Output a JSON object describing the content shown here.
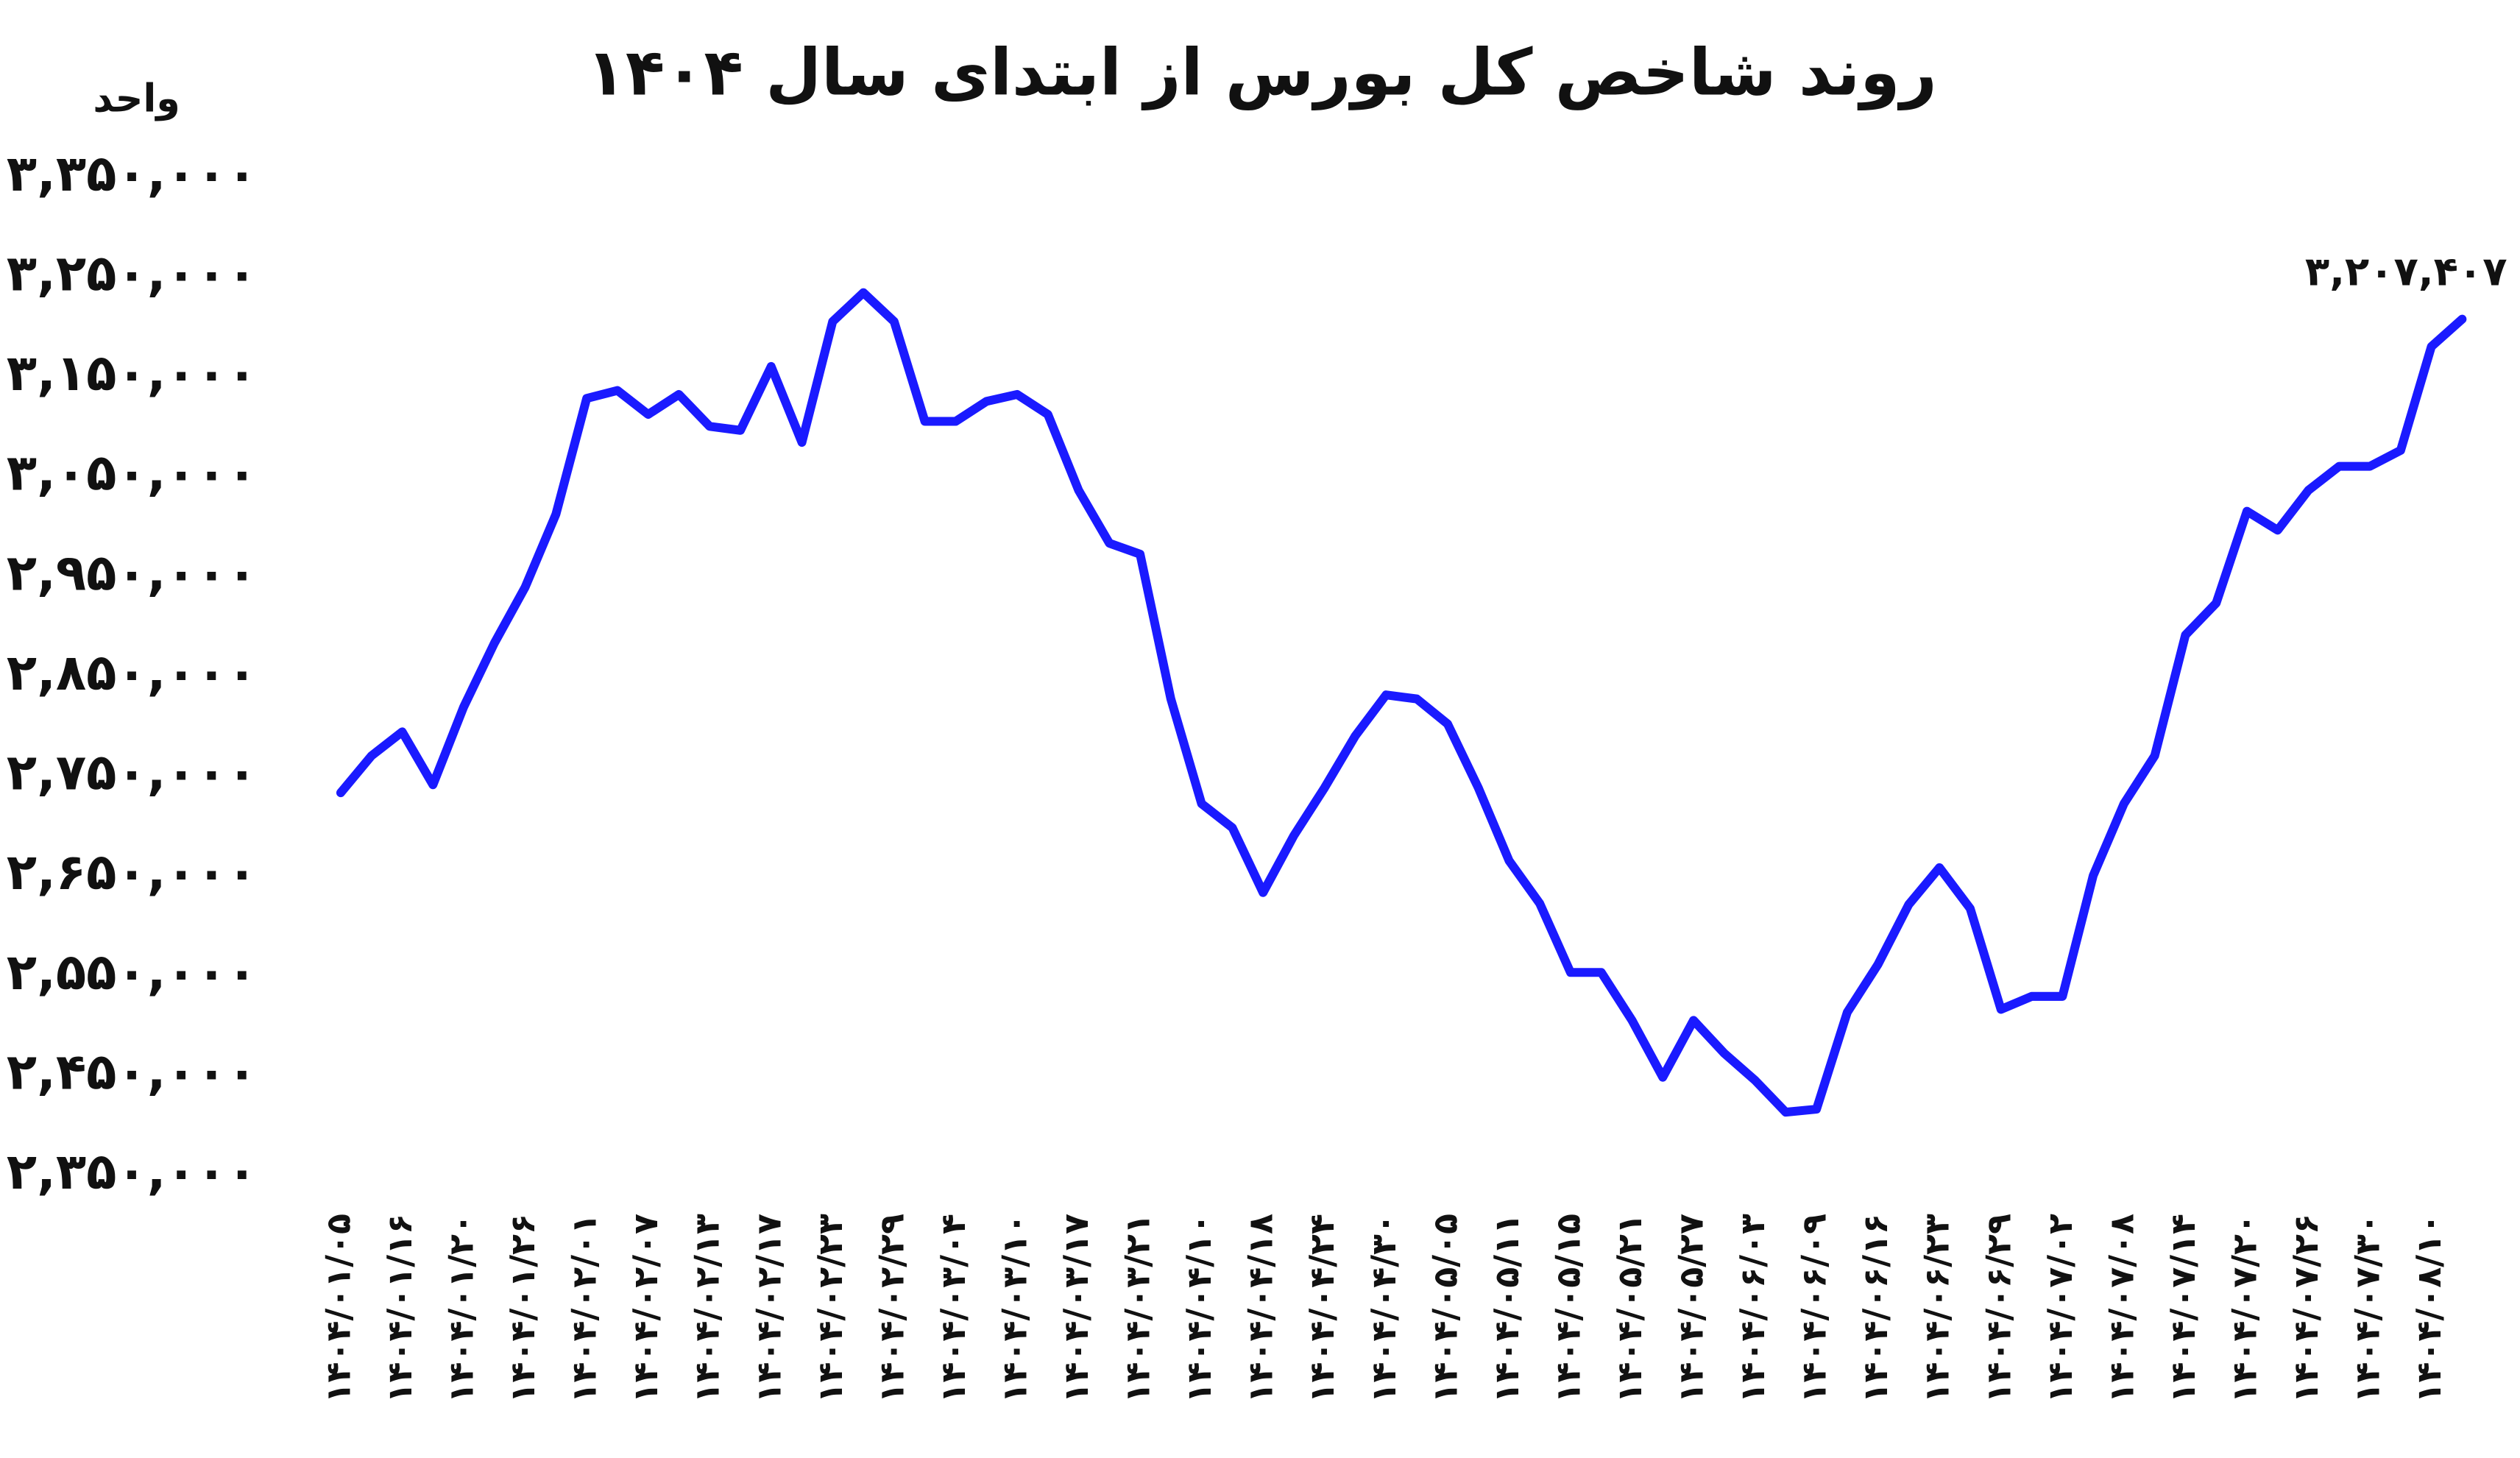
{
  "chart_data": {
    "type": "line",
    "title": "روند شاخص کل بورس از ابتدای سال ۱۴۰۴",
    "y_label": "واحد",
    "categories": [
      "۱۴۰۴/۰۱/۰۵",
      null,
      "۱۴۰۴/۰۱/۱۶",
      null,
      "۱۴۰۴/۰۱/۲۰",
      null,
      "۱۴۰۴/۰۱/۲۶",
      null,
      "۱۴۰۴/۰۲/۰۱",
      null,
      "۱۴۰۴/۰۲/۰۷",
      null,
      "۱۴۰۴/۰۲/۱۳",
      null,
      "۱۴۰۴/۰۲/۱۷",
      null,
      "۱۴۰۴/۰۲/۲۳",
      null,
      "۱۴۰۴/۰۲/۲۹",
      null,
      "۱۴۰۴/۰۳/۰۴",
      null,
      "۱۴۰۴/۰۳/۱۰",
      null,
      "۱۴۰۴/۰۳/۱۷",
      null,
      "۱۴۰۴/۰۳/۲۱",
      null,
      "۱۴۰۴/۰۴/۱۰",
      null,
      "۱۴۰۴/۰۴/۱۸",
      null,
      "۱۴۰۴/۰۴/۲۴",
      null,
      "۱۴۰۴/۰۴/۳۰",
      null,
      "۱۴۰۴/۰۵/۰۵",
      null,
      "۱۴۰۴/۰۵/۱۱",
      null,
      "۱۴۰۴/۰۵/۱۵",
      null,
      "۱۴۰۴/۰۵/۲۱",
      null,
      "۱۴۰۴/۰۵/۲۷",
      null,
      "۱۴۰۴/۰۶/۰۳",
      null,
      "۱۴۰۴/۰۶/۰۹",
      null,
      "۱۴۰۴/۰۶/۱۶",
      null,
      "۱۴۰۴/۰۶/۲۳",
      null,
      "۱۴۰۴/۰۶/۲۹",
      null,
      "۱۴۰۴/۰۷/۰۲",
      null,
      "۱۴۰۴/۰۷/۰۸",
      null,
      "۱۴۰۴/۰۷/۱۴",
      null,
      "۱۴۰۴/۰۷/۲۰",
      null,
      "۱۴۰۴/۰۷/۲۶",
      null,
      "۱۴۰۴/۰۷/۳۰",
      null,
      "۱۴۰۴/۰۸/۱۰",
      null
    ],
    "series": [
      {
        "color": "#1a1aff",
        "values": [
          2733000,
          2770000,
          2794000,
          2741000,
          2819000,
          2883000,
          2939000,
          3012000,
          3128000,
          3136000,
          3112000,
          3132000,
          3100000,
          3096000,
          3160000,
          3084000,
          3205000,
          3234000,
          3205000,
          3105000,
          3105000,
          3125000,
          3132000,
          3112000,
          3036000,
          2983000,
          2972000,
          2827000,
          2722000,
          2698000,
          2633000,
          2690000,
          2738000,
          2790000,
          2831000,
          2827000,
          2802000,
          2738000,
          2665000,
          2622000,
          2553000,
          2553000,
          2505000,
          2448000,
          2505000,
          2472000,
          2445000,
          2413000,
          2416000,
          2513000,
          2561000,
          2621000,
          2658000,
          2617000,
          2516000,
          2529000,
          2529000,
          2650000,
          2722000,
          2770000,
          2891000,
          2923000,
          3015000,
          2996000,
          3036000,
          3060000,
          3060000,
          3076000,
          3180000,
          3207407
        ],
        "value_labels": [
          null,
          null,
          null,
          null,
          null,
          null,
          null,
          null,
          null,
          null,
          null,
          null,
          null,
          null,
          null,
          null,
          null,
          null,
          null,
          null,
          null,
          null,
          null,
          null,
          null,
          null,
          null,
          null,
          null,
          null,
          null,
          null,
          null,
          null,
          null,
          null,
          null,
          null,
          null,
          null,
          null,
          null,
          null,
          null,
          null,
          null,
          null,
          null,
          null,
          null,
          null,
          null,
          null,
          null,
          null,
          null,
          null,
          null,
          null,
          null,
          null,
          null,
          null,
          null,
          null,
          null,
          null,
          null,
          null,
          "۳,۲۰۷,۴۰۷"
        ]
      }
    ],
    "ylim": [
      2350000,
      3350000
    ],
    "yticks": [
      {
        "value": 2350000,
        "label": "۲,۳۵۰,۰۰۰"
      },
      {
        "value": 2450000,
        "label": "۲,۴۵۰,۰۰۰"
      },
      {
        "value": 2550000,
        "label": "۲,۵۵۰,۰۰۰"
      },
      {
        "value": 2650000,
        "label": "۲,۶۵۰,۰۰۰"
      },
      {
        "value": 2750000,
        "label": "۲,۷۵۰,۰۰۰"
      },
      {
        "value": 2850000,
        "label": "۲,۸۵۰,۰۰۰"
      },
      {
        "value": 2950000,
        "label": "۲,۹۵۰,۰۰۰"
      },
      {
        "value": 3050000,
        "label": "۳,۰۵۰,۰۰۰"
      },
      {
        "value": 3150000,
        "label": "۳,۱۵۰,۰۰۰"
      },
      {
        "value": 3250000,
        "label": "۳,۲۵۰,۰۰۰"
      },
      {
        "value": 3350000,
        "label": "۳,۳۵۰,۰۰۰"
      }
    ],
    "grid": false
  }
}
